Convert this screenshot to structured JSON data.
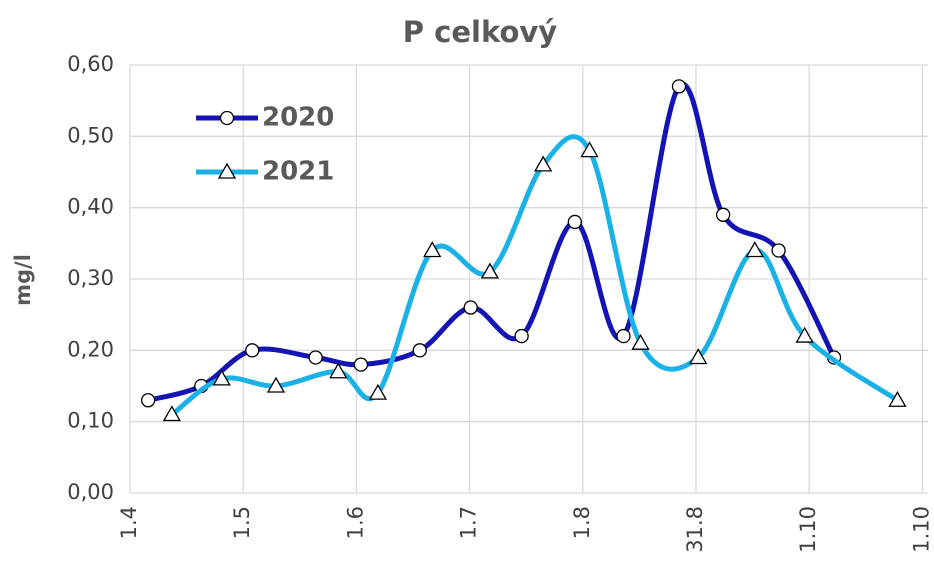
{
  "chart_data": {
    "type": "line",
    "title": "P celkový",
    "y_label": "mg/l",
    "xlim": [
      0,
      7.05
    ],
    "ylim": [
      0,
      0.6
    ],
    "xticks": [
      {
        "value": 0,
        "label": "1.4"
      },
      {
        "value": 1,
        "label": "1.5"
      },
      {
        "value": 2,
        "label": "1.6"
      },
      {
        "value": 3,
        "label": "1.7"
      },
      {
        "value": 4,
        "label": "1.8"
      },
      {
        "value": 5,
        "label": "31.8"
      },
      {
        "value": 6,
        "label": "1.10"
      },
      {
        "value": 7,
        "label": "1.10"
      }
    ],
    "yticks": [
      {
        "value": 0,
        "label": "0,00"
      },
      {
        "value": 0.1,
        "label": "0,10"
      },
      {
        "value": 0.2,
        "label": "0,20"
      },
      {
        "value": 0.3,
        "label": "0,30"
      },
      {
        "value": 0.4,
        "label": "0,40"
      },
      {
        "value": 0.5,
        "label": "0,50"
      },
      {
        "value": 0.6,
        "label": "0,60"
      }
    ],
    "grid": true,
    "legend": "upper left",
    "series": [
      {
        "name": "2020",
        "color": "#1414b4",
        "marker": "circle",
        "x": [
          0.16,
          0.63,
          1.08,
          1.64,
          2.04,
          2.56,
          3.01,
          3.46,
          3.93,
          4.36,
          4.85,
          5.24,
          5.73,
          6.22
        ],
        "values": [
          0.13,
          0.15,
          0.2,
          0.19,
          0.18,
          0.2,
          0.26,
          0.22,
          0.38,
          0.22,
          0.57,
          0.39,
          0.34,
          0.19
        ]
      },
      {
        "name": "2021",
        "color": "#1ab2e6",
        "marker": "triangle",
        "x": [
          0.37,
          0.81,
          1.29,
          1.84,
          2.19,
          2.67,
          3.18,
          3.65,
          4.06,
          4.51,
          5.02,
          5.52,
          5.96,
          6.78
        ],
        "values": [
          0.11,
          0.16,
          0.15,
          0.17,
          0.14,
          0.34,
          0.31,
          0.46,
          0.48,
          0.21,
          0.19,
          0.34,
          0.22,
          0.13
        ]
      }
    ]
  }
}
